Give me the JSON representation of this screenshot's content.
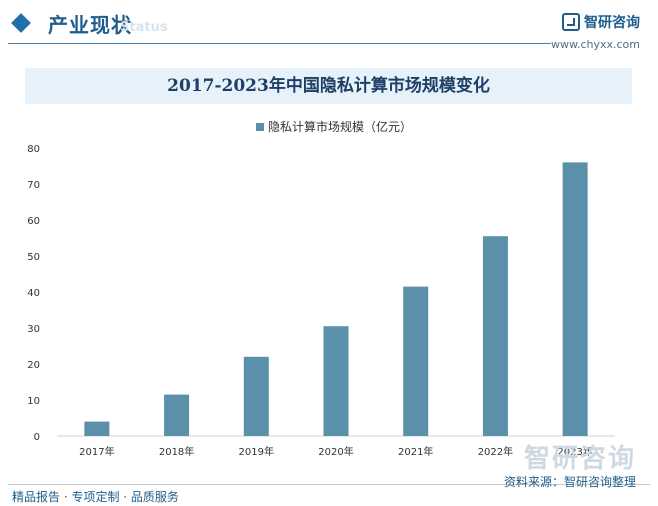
{
  "header": {
    "section_title": "产业现状",
    "section_sub": "Status",
    "brand_name": "智研咨询",
    "brand_url": "www.chyxx.com"
  },
  "chart_data": {
    "type": "bar",
    "title": "2017-2023年中国隐私计算市场规模变化",
    "categories": [
      "2017年",
      "2018年",
      "2019年",
      "2020年",
      "2021年",
      "2022年",
      "2023年"
    ],
    "series": [
      {
        "name": "隐私计算市场规模（亿元）",
        "values": [
          4,
          11.5,
          22,
          30.5,
          41.5,
          55.5,
          76
        ]
      }
    ],
    "y_ticks": [
      "0",
      "10",
      "20",
      "30",
      "40",
      "50",
      "60",
      "70",
      "80"
    ],
    "ylim": [
      0,
      80
    ],
    "bar_color": "#5b90aa",
    "grid": false,
    "legend_position": "top"
  },
  "footer": {
    "left": "精品报告 · 专项定制 · 品质服务",
    "right": "资料来源：智研咨询整理",
    "watermark": "智研咨询"
  }
}
